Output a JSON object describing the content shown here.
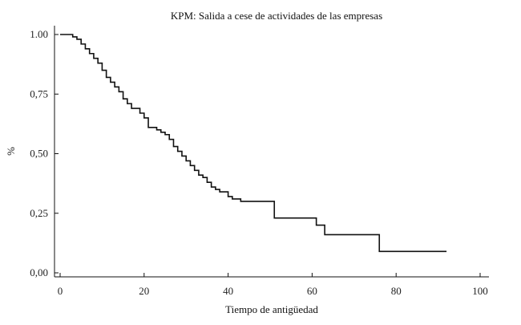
{
  "chart_data": {
    "type": "line",
    "title": "KPM: Salida a cese de actividades de las empresas",
    "xlabel": "Tiempo de antigüedad",
    "ylabel": "%",
    "xlim": [
      0,
      100
    ],
    "ylim": [
      0,
      1
    ],
    "x_ticks": [
      "0",
      "20",
      "40",
      "60",
      "80",
      "100"
    ],
    "y_ticks": [
      "0,00",
      "0,25",
      "0,50",
      "0,75",
      "1.00"
    ],
    "grid": false,
    "step": true,
    "series": [
      {
        "points": [
          [
            0,
            1.0
          ],
          [
            3,
            0.99
          ],
          [
            4,
            0.98
          ],
          [
            5,
            0.96
          ],
          [
            6,
            0.94
          ],
          [
            7,
            0.92
          ],
          [
            8,
            0.9
          ],
          [
            9,
            0.88
          ],
          [
            10,
            0.85
          ],
          [
            11,
            0.82
          ],
          [
            12,
            0.8
          ],
          [
            13,
            0.78
          ],
          [
            14,
            0.76
          ],
          [
            15,
            0.73
          ],
          [
            16,
            0.71
          ],
          [
            17,
            0.69
          ],
          [
            19,
            0.67
          ],
          [
            20,
            0.65
          ],
          [
            21,
            0.61
          ],
          [
            23,
            0.6
          ],
          [
            24,
            0.59
          ],
          [
            25,
            0.58
          ],
          [
            26,
            0.56
          ],
          [
            27,
            0.53
          ],
          [
            28,
            0.51
          ],
          [
            29,
            0.49
          ],
          [
            30,
            0.47
          ],
          [
            31,
            0.45
          ],
          [
            32,
            0.43
          ],
          [
            33,
            0.41
          ],
          [
            34,
            0.4
          ],
          [
            35,
            0.38
          ],
          [
            36,
            0.36
          ],
          [
            37,
            0.35
          ],
          [
            38,
            0.34
          ],
          [
            40,
            0.32
          ],
          [
            41,
            0.31
          ],
          [
            43,
            0.3
          ],
          [
            51,
            0.23
          ],
          [
            61,
            0.2
          ],
          [
            63,
            0.16
          ],
          [
            76,
            0.09
          ],
          [
            92,
            0.09
          ]
        ]
      }
    ]
  }
}
